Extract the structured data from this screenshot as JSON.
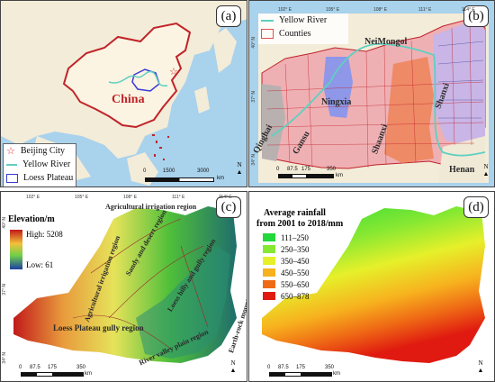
{
  "panels": {
    "a": {
      "label": "(a)",
      "country_label": "China",
      "legend": [
        {
          "label": "Beijing City",
          "icon": "star-icon",
          "color": "#e0202a"
        },
        {
          "label": "Yellow River",
          "icon": "line-icon",
          "color": "#5fd0c0"
        },
        {
          "label": "Loess Plateau",
          "icon": "box-icon",
          "color": "#3a3ad8"
        }
      ],
      "scale": {
        "ticks": [
          "0",
          "1500",
          "3000"
        ],
        "unit": "km"
      },
      "north": "N"
    },
    "b": {
      "label": "(b)",
      "legend": [
        {
          "label": "Yellow River",
          "icon": "line-icon",
          "color": "#5fd0c0"
        },
        {
          "label": "Counties",
          "icon": "box-icon",
          "color": "#e05050"
        }
      ],
      "top_ticks": [
        "102° E",
        "105° E",
        "108° E",
        "111° E",
        "114° E"
      ],
      "side_ticks": [
        "40° N",
        "37° N",
        "34° N"
      ],
      "provinces": [
        "NeiMongol",
        "Ningxia",
        "Qinghai",
        "Gansu",
        "Shaanxi",
        "Shanxi",
        "Henan"
      ],
      "scale": {
        "ticks": [
          "0",
          "87.5",
          "175",
          "350"
        ],
        "unit": "km"
      },
      "north": "N"
    },
    "c": {
      "label": "(c)",
      "top_ticks": [
        "102° E",
        "105° E",
        "108° E",
        "111° E",
        "114° E"
      ],
      "side_ticks": [
        "40° N",
        "37° N",
        "34° N"
      ],
      "legend_title": "Elevation/m",
      "high": "High: 5208",
      "low": "Low: 61",
      "regions": [
        "Agricultural irrigation region",
        "Agricultural irrigation region",
        "Sandy and desert region",
        "Loess hilly and gully region",
        "Earth-rock mountain region",
        "Loess Plateau gully region",
        "River valley plain region"
      ],
      "scale": {
        "ticks": [
          "0",
          "87.5",
          "175",
          "350"
        ],
        "unit": "km"
      },
      "north": "N"
    },
    "d": {
      "label": "(d)",
      "legend_title_1": "Average rainfall",
      "legend_title_2": "from 2001 to 2018/mm",
      "classes": [
        {
          "label": "111–250",
          "color": "#22d83a"
        },
        {
          "label": "250–350",
          "color": "#86e832"
        },
        {
          "label": "350–450",
          "color": "#e6f02a"
        },
        {
          "label": "450–550",
          "color": "#f7b21e"
        },
        {
          "label": "550–650",
          "color": "#ef6a15"
        },
        {
          "label": "650–878",
          "color": "#e01a10"
        }
      ],
      "scale": {
        "ticks": [
          "0",
          "87.5",
          "175",
          "350"
        ],
        "unit": "km"
      },
      "north": "N"
    }
  }
}
